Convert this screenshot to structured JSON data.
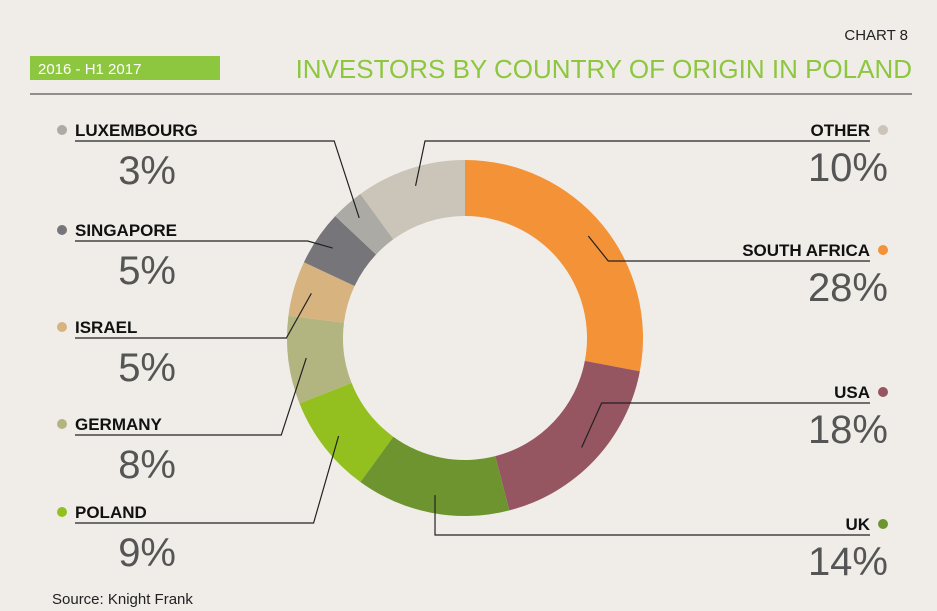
{
  "chart_data": {
    "type": "donut",
    "chart_label": "CHART 8",
    "subtitle": "2016 - H1 2017",
    "title": "INVESTORS BY COUNTRY OF ORIGIN IN POLAND",
    "source": "Source: Knight Frank",
    "categories": [
      "SOUTH AFRICA",
      "USA",
      "UK",
      "POLAND",
      "GERMANY",
      "ISRAEL",
      "SINGAPORE",
      "LUXEMBOURG",
      "OTHER"
    ],
    "values": [
      28,
      18,
      14,
      9,
      8,
      5,
      5,
      3,
      10
    ],
    "value_labels": [
      "28%",
      "18%",
      "14%",
      "9%",
      "8%",
      "5%",
      "5%",
      "3%",
      "10%"
    ],
    "colors": [
      "#f39237",
      "#955561",
      "#6e9430",
      "#93c01f",
      "#b2b57f",
      "#d6b37f",
      "#76767a",
      "#acaaa5",
      "#cac4b9"
    ]
  }
}
